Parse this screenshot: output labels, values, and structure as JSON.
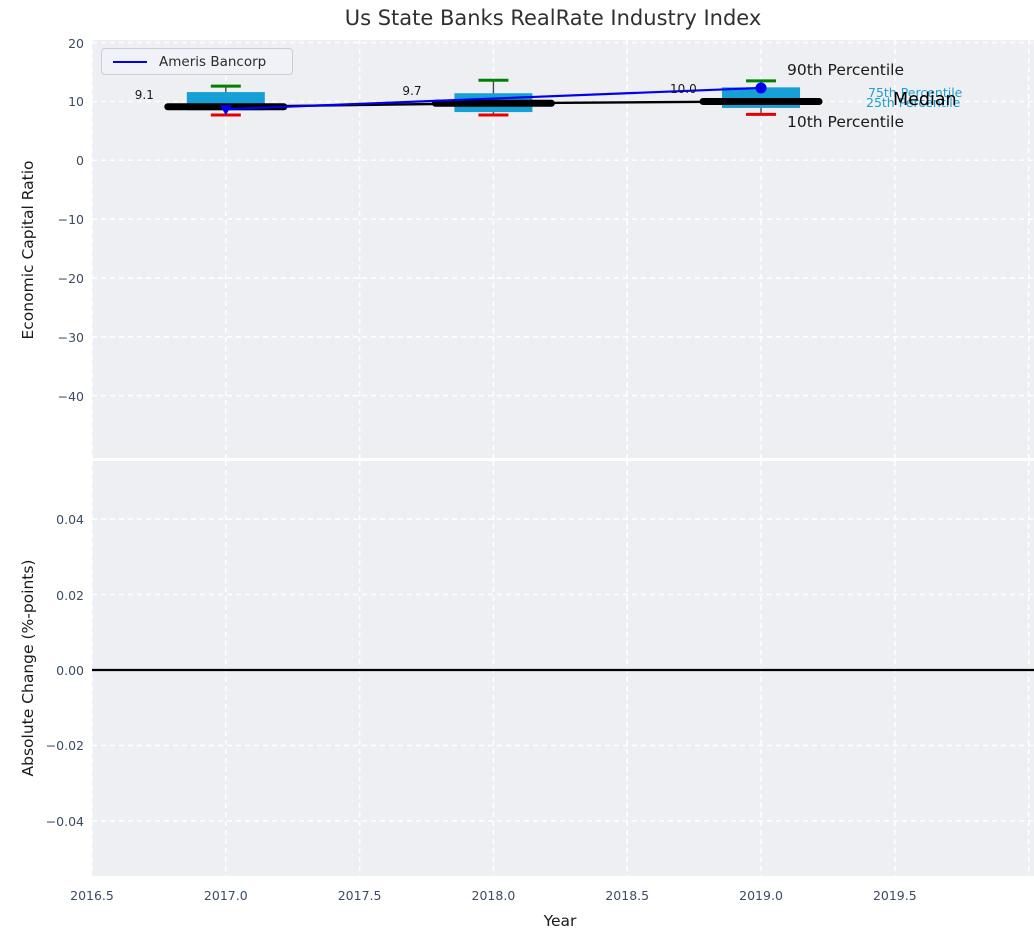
{
  "title": "Us State Banks RealRate Industry Index",
  "legend": {
    "label": "Ameris Bancorp"
  },
  "colors": {
    "panel_bg": "#edeff2",
    "grid": "#ffffff",
    "box_fill": "#17a0d6",
    "whisker": "#4a4a4a",
    "cap_90th": "#008000",
    "cap_10th": "#e60000",
    "median_line": "#000000",
    "series_line": "#0000ee",
    "zero_line": "#000000",
    "tick_text": "#3d4c63",
    "percentile_label_cyan": "#1f9ecf"
  },
  "chart_data": {
    "type": "box+line",
    "title": "Us State Banks RealRate Industry Index",
    "xlabel": "Year",
    "xlim": [
      2016.5,
      2020.02
    ],
    "xticks": [
      2016.5,
      2017.0,
      2017.5,
      2018.0,
      2018.5,
      2019.0,
      2019.5
    ],
    "xtick_labels": [
      "2016.5",
      "2017.0",
      "2017.5",
      "2018.0",
      "2018.5",
      "2019.0",
      "2019.5"
    ],
    "grid_x": [
      2016.5,
      2017.0,
      2017.5,
      2018.0,
      2018.5,
      2019.0,
      2019.5,
      2020.0
    ],
    "panels": [
      {
        "ylabel": "Economic Capital Ratio",
        "ylim": [
          -50.6,
          20.45
        ],
        "yticks": [
          20,
          10,
          0,
          -10,
          -20,
          -30,
          -40
        ],
        "ytick_labels": [
          "20",
          "10",
          "0",
          "−10",
          "−20",
          "−30",
          "−40"
        ],
        "boxes": [
          {
            "x": 2017,
            "p10": 7.7,
            "p25": 8.5,
            "median": 9.1,
            "p75": 11.6,
            "p90": 12.6,
            "label": "9.1"
          },
          {
            "x": 2018,
            "p10": 7.7,
            "p25": 8.2,
            "median": 9.7,
            "p75": 11.4,
            "p90": 13.6,
            "label": "9.7"
          },
          {
            "x": 2019,
            "p10": 7.8,
            "p25": 8.9,
            "median": 10.0,
            "p75": 12.4,
            "p90": 13.5,
            "label": "10.0"
          }
        ],
        "median_line": [
          [
            2017,
            9.1
          ],
          [
            2018,
            9.7
          ],
          [
            2019,
            10.0
          ]
        ],
        "series": [
          {
            "name": "Ameris Bancorp",
            "points": [
              {
                "x": 2017,
                "y": 8.7,
                "marker": "triangle-down"
              },
              {
                "x": 2019,
                "y": 12.3,
                "marker": "circle"
              }
            ]
          }
        ],
        "annotations": {
          "p90": "90th Percentile",
          "p75": "75th Percentile",
          "p25": "25th Percentile",
          "median": "Median",
          "p10": "10th Percentile"
        }
      },
      {
        "ylabel": "Absolute Change (%-points)",
        "ylim": [
          -0.0546,
          0.0554
        ],
        "yticks": [
          0.04,
          0.02,
          0.0,
          -0.02,
          -0.04
        ],
        "ytick_labels": [
          "0.04",
          "0.02",
          "0.00",
          "−0.02",
          "−0.04"
        ],
        "zero_line": 0.0
      }
    ]
  }
}
